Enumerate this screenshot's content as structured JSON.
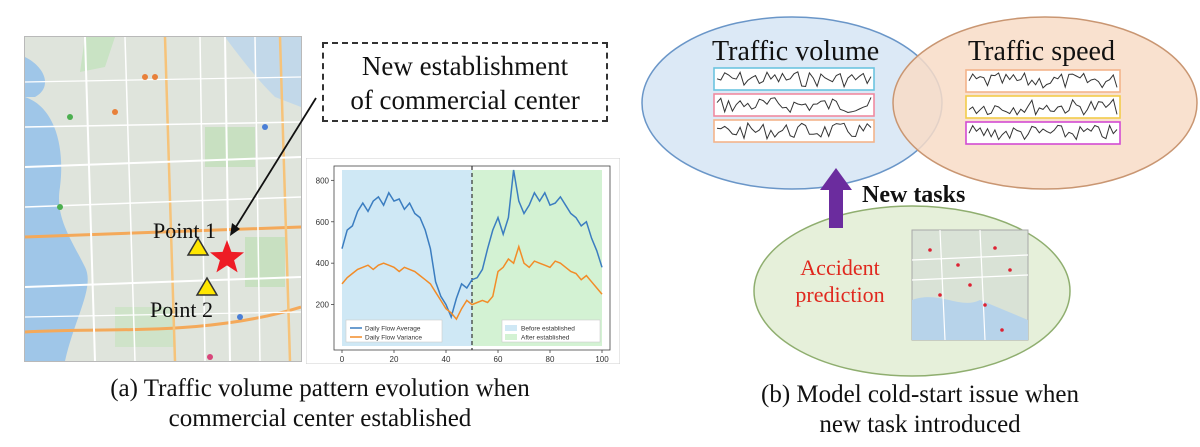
{
  "panel_a": {
    "callout": {
      "line1": "New establishment",
      "line2": "of commercial center"
    },
    "point1": "Point 1",
    "point2": "Point 2",
    "caption": {
      "line1": "(a) Traffic volume pattern evolution when",
      "line2": "commercial center established"
    }
  },
  "panel_b": {
    "volume_title": "Traffic volume",
    "speed_title": "Traffic speed",
    "new_tasks": "New tasks",
    "accident": {
      "line1": "Accident",
      "line2": "prediction"
    },
    "caption": {
      "line1": "(b) Model cold-start issue when",
      "line2": "new task introduced"
    }
  },
  "colors": {
    "before_shade": "#cfe8f5",
    "after_shade": "#d3f2d3",
    "average_line": "#3b7dc0",
    "variance_line": "#f28c28",
    "star": "#ee1c25",
    "volume_ellipse": "#dce9f6",
    "speed_ellipse": "#f8dcc7",
    "accident_ellipse": "#e6f0da",
    "arrow": "#6b2c9e",
    "accident_text": "#e0281e"
  },
  "chart_data": {
    "type": "line",
    "xlim": [
      0,
      100
    ],
    "ylim": [
      0,
      850
    ],
    "x_ticks": [
      0,
      20,
      40,
      60,
      80,
      100
    ],
    "y_ticks": [
      200,
      400,
      600,
      800
    ],
    "divider_x": 50,
    "legend_left": [
      "Daily Flow Average",
      "Daily Flow Variance"
    ],
    "legend_right": [
      "Before established",
      "After established"
    ],
    "series": [
      {
        "name": "Daily Flow Average",
        "x": [
          0,
          2,
          4,
          6,
          8,
          10,
          12,
          14,
          16,
          18,
          20,
          22,
          24,
          26,
          28,
          30,
          32,
          34,
          36,
          38,
          40,
          42,
          44,
          46,
          48,
          50,
          52,
          54,
          56,
          58,
          60,
          62,
          64,
          66,
          68,
          70,
          72,
          74,
          76,
          78,
          80,
          82,
          84,
          86,
          88,
          90,
          92,
          94,
          96,
          98,
          100
        ],
        "y": [
          470,
          560,
          580,
          650,
          690,
          650,
          700,
          720,
          680,
          740,
          700,
          710,
          660,
          690,
          640,
          620,
          560,
          470,
          310,
          240,
          200,
          140,
          230,
          300,
          280,
          320,
          330,
          370,
          470,
          560,
          620,
          540,
          620,
          850,
          700,
          640,
          680,
          740,
          700,
          740,
          680,
          690,
          720,
          680,
          640,
          620,
          580,
          600,
          520,
          460,
          380
        ]
      },
      {
        "name": "Daily Flow Variance",
        "x": [
          0,
          2,
          4,
          6,
          8,
          10,
          12,
          14,
          16,
          18,
          20,
          22,
          24,
          26,
          28,
          30,
          32,
          34,
          36,
          38,
          40,
          42,
          44,
          46,
          48,
          50,
          52,
          54,
          56,
          58,
          60,
          62,
          64,
          66,
          68,
          70,
          72,
          74,
          76,
          78,
          80,
          82,
          84,
          86,
          88,
          90,
          92,
          94,
          96,
          98,
          100
        ],
        "y": [
          300,
          330,
          350,
          370,
          380,
          390,
          370,
          390,
          400,
          390,
          380,
          360,
          380,
          370,
          360,
          340,
          320,
          300,
          260,
          220,
          180,
          160,
          130,
          180,
          220,
          200,
          210,
          220,
          210,
          240,
          360,
          380,
          420,
          400,
          480,
          400,
          380,
          410,
          400,
          390,
          380,
          410,
          400,
          380,
          360,
          350,
          320,
          340,
          310,
          280,
          250
        ]
      }
    ]
  }
}
